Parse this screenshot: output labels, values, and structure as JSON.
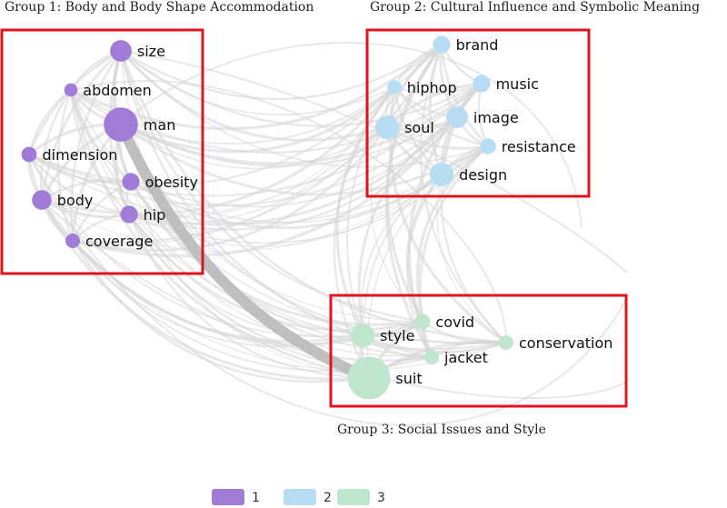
{
  "groups": [
    {
      "id": 1,
      "title": "Group 1: Body and Body Shape Accommodation"
    },
    {
      "id": 2,
      "title": "Group 2: Cultural Influence and Symbolic Meaning"
    },
    {
      "id": 3,
      "title": "Group 3: Social Issues and Style"
    }
  ],
  "colors": {
    "1": "#a07cd6",
    "2": "#b8dcf3",
    "3": "#bde6cc",
    "box": "#e0141e"
  },
  "nodes": [
    {
      "id": "size",
      "label": "size",
      "group": 1,
      "weight": 3
    },
    {
      "id": "abdomen",
      "label": "abdomen",
      "group": 1,
      "weight": 1
    },
    {
      "id": "man",
      "label": "man",
      "group": 1,
      "weight": 6
    },
    {
      "id": "dimension",
      "label": "dimension",
      "group": 1,
      "weight": 1.5
    },
    {
      "id": "obesity",
      "label": "obesity",
      "group": 1,
      "weight": 2
    },
    {
      "id": "body",
      "label": "body",
      "group": 1,
      "weight": 2.5
    },
    {
      "id": "hip",
      "label": "hip",
      "group": 1,
      "weight": 2
    },
    {
      "id": "coverage",
      "label": "coverage",
      "group": 1,
      "weight": 1.3
    },
    {
      "id": "brand",
      "label": "brand",
      "group": 2,
      "weight": 2
    },
    {
      "id": "hiphop",
      "label": "hiphop",
      "group": 2,
      "weight": 1.2
    },
    {
      "id": "music",
      "label": "music",
      "group": 2,
      "weight": 2
    },
    {
      "id": "soul",
      "label": "soul",
      "group": 2,
      "weight": 3.5
    },
    {
      "id": "image",
      "label": "image",
      "group": 2,
      "weight": 3
    },
    {
      "id": "resistance",
      "label": "resistance",
      "group": 2,
      "weight": 1.6
    },
    {
      "id": "design",
      "label": "design",
      "group": 2,
      "weight": 3.5
    },
    {
      "id": "style",
      "label": "style",
      "group": 3,
      "weight": 3.5
    },
    {
      "id": "covid",
      "label": "covid",
      "group": 3,
      "weight": 1.5
    },
    {
      "id": "conservation",
      "label": "conservation",
      "group": 3,
      "weight": 1.3
    },
    {
      "id": "jacket",
      "label": "jacket",
      "group": 3,
      "weight": 1.3
    },
    {
      "id": "suit",
      "label": "suit",
      "group": 3,
      "weight": 8
    }
  ],
  "strong_link": {
    "source": "man",
    "target": "suit"
  },
  "legend": [
    {
      "group": 1,
      "label": "1"
    },
    {
      "group": 2,
      "label": "2"
    },
    {
      "group": 3,
      "label": "3"
    }
  ]
}
